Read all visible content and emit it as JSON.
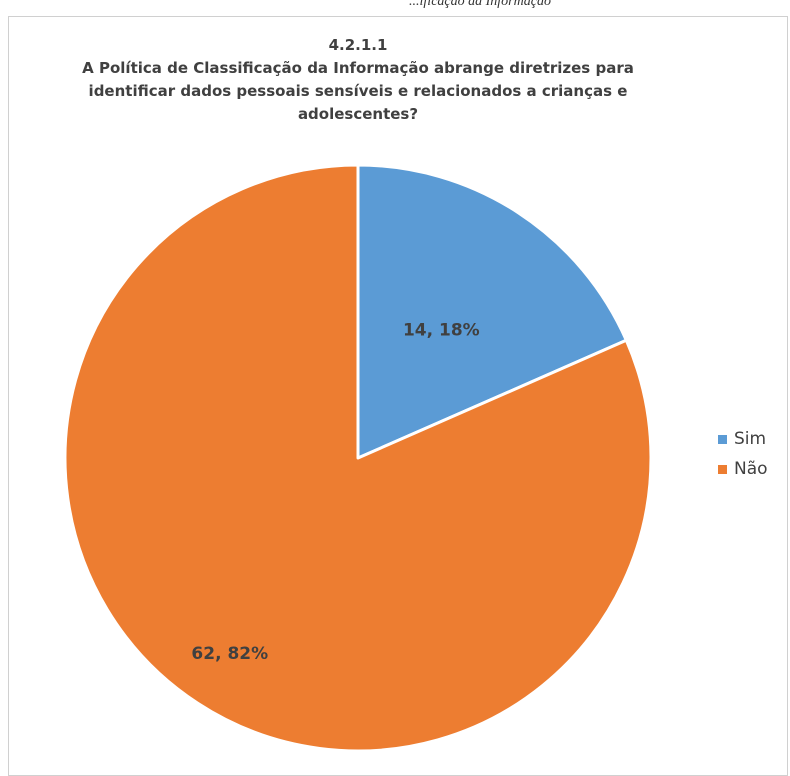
{
  "header_fragment": "...ificação da Informação",
  "chart_data": {
    "type": "pie",
    "title_lines": [
      "4.2.1.1",
      "A Política de Classificação da Informação abrange diretrizes para",
      "identificar dados pessoais sensíveis e relacionados a crianças e",
      "adolescentes?"
    ],
    "categories": [
      "Sim",
      "Não"
    ],
    "values": [
      14,
      62
    ],
    "data_labels": [
      "14, 18%",
      "62, 82%"
    ],
    "colors": [
      "#5b9bd5",
      "#ed7d31"
    ],
    "start_angle": "12 o'clock",
    "direction": "clockwise",
    "legend_position": "right"
  }
}
